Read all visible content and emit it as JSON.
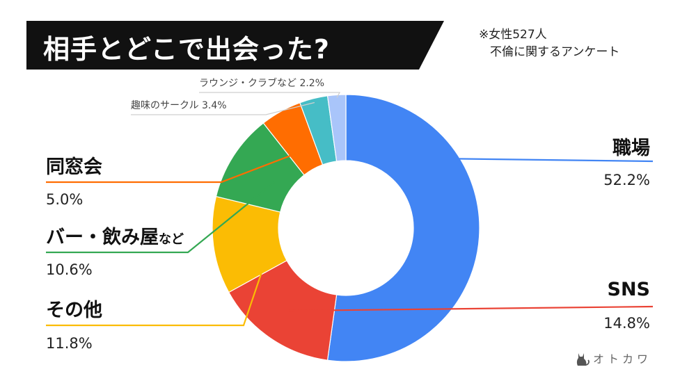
{
  "header": {
    "title": "相手とどこで出会った?",
    "note_line1": "※女性527人",
    "note_line2": "不倫に関するアンケート"
  },
  "brand": {
    "name": "オトカワ",
    "icon": "cat-icon"
  },
  "chart_data": {
    "type": "pie",
    "donut": true,
    "slices": [
      {
        "label": "職場",
        "value": 52.2,
        "display": "52.2%",
        "color": "#4285f4"
      },
      {
        "label": "SNS",
        "value": 14.8,
        "display": "14.8%",
        "color": "#ea4335"
      },
      {
        "label": "その他",
        "value": 11.8,
        "display": "11.8%",
        "color": "#fbbc04"
      },
      {
        "label": "バー・飲み屋",
        "label_suffix": "など",
        "value": 10.6,
        "display": "10.6%",
        "color": "#34a853"
      },
      {
        "label": "同窓会",
        "value": 5.0,
        "display": "5.0%",
        "color": "#ff6d01"
      },
      {
        "label": "趣味のサークル",
        "value": 3.4,
        "display": "3.4%",
        "color": "#46bdc6"
      },
      {
        "label": "ラウンジ・クラブなど",
        "value": 2.2,
        "display": "2.2%",
        "color": "#a9c5fa"
      }
    ],
    "legend": "callouts"
  }
}
